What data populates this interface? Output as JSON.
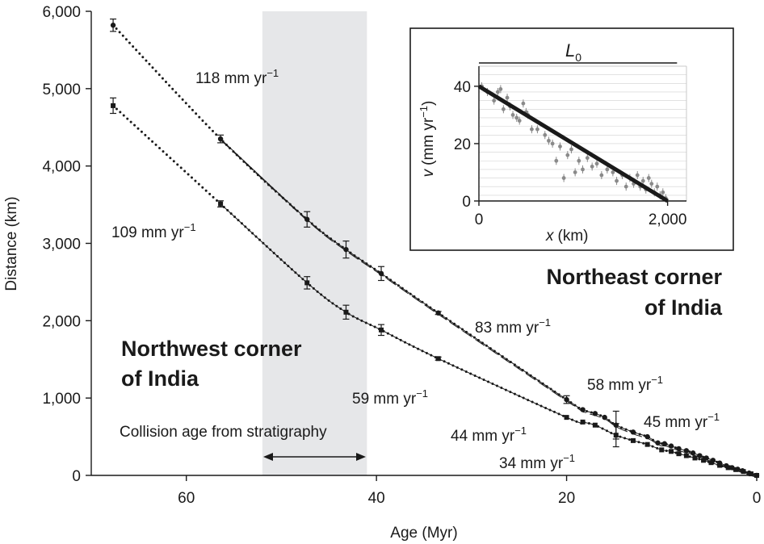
{
  "colors": {
    "background": "#ffffff",
    "ink": "#1a1a1a",
    "collision_band": "#e6e7e9",
    "inset_gridline": "#d0d0d0",
    "inset_points": "#8a8a8a"
  },
  "icons": {
    "collision_arrow": "double-headed-arrow-icon"
  },
  "chart_data": [
    {
      "type": "scatter",
      "xlabel": "Age (Myr)",
      "ylabel": "Distance (km)",
      "xlim": [
        70,
        0
      ],
      "ylim": [
        0,
        6000
      ],
      "x_ticks": [
        60,
        40,
        20,
        0
      ],
      "x_tick_labels": [
        "60",
        "40",
        "20",
        "0"
      ],
      "y_ticks": [
        0,
        1000,
        2000,
        3000,
        4000,
        5000,
        6000
      ],
      "y_tick_labels": [
        "0",
        "1,000",
        "2,000",
        "3,000",
        "4,000",
        "5,000",
        "6,000"
      ],
      "grid": false,
      "legend": "none",
      "collision_band_myr": [
        52,
        41
      ],
      "annotations": {
        "collision_label": "Collision age from stratigraphy",
        "northeast_line1": "Northeast corner",
        "northeast_line2": "of India",
        "northwest_line1": "Northwest corner",
        "northwest_line2": "of India"
      },
      "rate_labels": [
        {
          "text": "118 mm yr",
          "sup": "−1"
        },
        {
          "text": "109 mm yr",
          "sup": "−1"
        },
        {
          "text": "83 mm yr",
          "sup": "−1"
        },
        {
          "text": "59 mm yr",
          "sup": "−1"
        },
        {
          "text": "58 mm yr",
          "sup": "−1"
        },
        {
          "text": "45 mm yr",
          "sup": "−1"
        },
        {
          "text": "44 mm yr",
          "sup": "−1"
        },
        {
          "text": "34 mm yr",
          "sup": "−1"
        }
      ],
      "series": [
        {
          "marker": "circle",
          "x": [
            67.7,
            56.4,
            47.3,
            43.2,
            39.5,
            33.5,
            20.0,
            18.3,
            17.0,
            16.0,
            14.8,
            13.0,
            11.5,
            10.4,
            9.7,
            9.0,
            8.2,
            7.4,
            6.7,
            6.0,
            5.3,
            4.6,
            3.9,
            3.2,
            2.6,
            2.0,
            1.5,
            0.8,
            0.0
          ],
          "y": [
            5820,
            4350,
            3310,
            2920,
            2610,
            2100,
            980,
            850,
            800,
            750,
            650,
            560,
            500,
            420,
            410,
            380,
            345,
            320,
            290,
            255,
            225,
            195,
            160,
            125,
            100,
            80,
            60,
            30,
            0
          ],
          "err": [
            80,
            50,
            100,
            110,
            90,
            20,
            50,
            0,
            0,
            0,
            180,
            0,
            0,
            0,
            0,
            0,
            0,
            0,
            0,
            0,
            0,
            0,
            0,
            0,
            0,
            0,
            0,
            0,
            0
          ]
        },
        {
          "marker": "square",
          "x": [
            67.7,
            56.4,
            47.3,
            43.2,
            39.5,
            33.5,
            20.0,
            18.3,
            17.0,
            14.8,
            13.0,
            11.5,
            10.0,
            9.0,
            8.2,
            7.4,
            6.5,
            5.6,
            4.8,
            3.9,
            3.0,
            2.2,
            1.4,
            0.6,
            0.0
          ],
          "y": [
            4780,
            3510,
            2490,
            2110,
            1880,
            1510,
            750,
            690,
            650,
            520,
            450,
            400,
            330,
            310,
            280,
            255,
            225,
            195,
            165,
            130,
            100,
            75,
            50,
            20,
            0
          ],
          "err": [
            100,
            40,
            80,
            90,
            70,
            20,
            0,
            0,
            0,
            150,
            0,
            0,
            0,
            0,
            0,
            0,
            0,
            0,
            0,
            0,
            0,
            0,
            0,
            0,
            0
          ]
        }
      ]
    },
    {
      "type": "scatter",
      "xlabel_var": "x",
      "xlabel_unit": "(km)",
      "ylabel_var": "v",
      "ylabel_unit": "(mm yr",
      "ylabel_sup": "−1",
      "ylabel_close": ")",
      "xlim": [
        0,
        2200
      ],
      "ylim": [
        0,
        47
      ],
      "x_ticks": [
        0,
        2000
      ],
      "x_tick_labels": [
        "0",
        "2,000"
      ],
      "y_ticks": [
        0,
        20,
        40
      ],
      "y_tick_labels": [
        "0",
        "20",
        "40"
      ],
      "L0_label": "L",
      "L0_sub": "0",
      "L0_km": [
        0,
        2100
      ],
      "fit_line": {
        "x": [
          0,
          2000
        ],
        "y": [
          40,
          0
        ]
      },
      "points": {
        "x": [
          30,
          90,
          160,
          200,
          230,
          260,
          300,
          330,
          360,
          400,
          430,
          470,
          500,
          520,
          560,
          620,
          700,
          740,
          780,
          820,
          860,
          900,
          940,
          980,
          1020,
          1060,
          1100,
          1150,
          1200,
          1250,
          1300,
          1360,
          1420,
          1460,
          1520,
          1560,
          1600,
          1640,
          1680,
          1710,
          1740,
          1770,
          1800,
          1830,
          1860,
          1890,
          1920,
          1950,
          1980
        ],
        "y": [
          40,
          38,
          35,
          38,
          39,
          32,
          36,
          33,
          30,
          29,
          28,
          34,
          31,
          30,
          25,
          25,
          23,
          21,
          20,
          14,
          19,
          8,
          16,
          18,
          10,
          14,
          11,
          15,
          12,
          13,
          9,
          11,
          10,
          7,
          9,
          5,
          8,
          6,
          9,
          5,
          7,
          4,
          8,
          6,
          3,
          5,
          2,
          3,
          1
        ]
      }
    }
  ]
}
